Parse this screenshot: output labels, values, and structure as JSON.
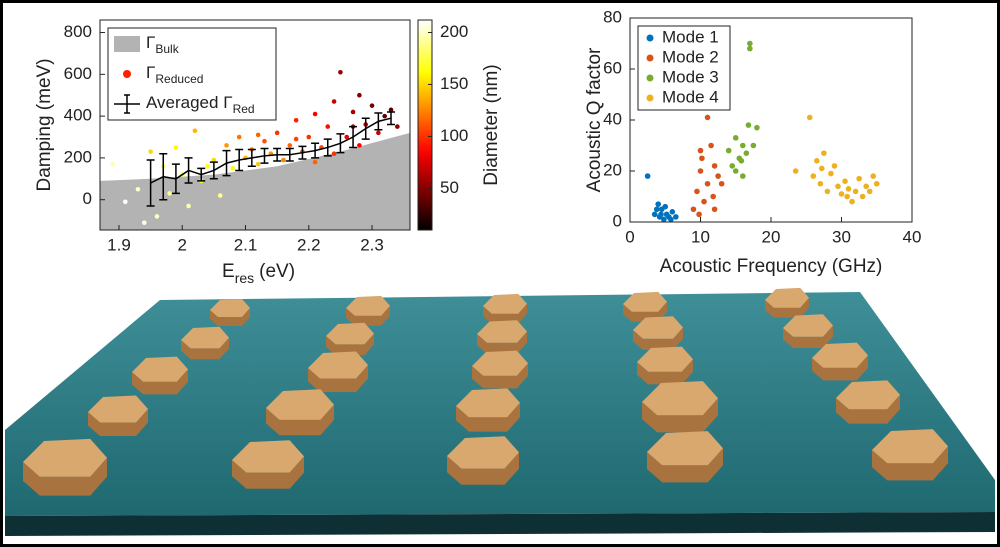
{
  "chart_data": [
    {
      "type": "scatter",
      "ylabel": "Damping (meV)",
      "xlabel": "E",
      "xlabel_sub": "res",
      "xlabel_unit": "(eV)",
      "xlim": [
        1.87,
        2.36
      ],
      "ylim": [
        -145,
        860
      ],
      "xticks": [
        1.9,
        2,
        2.1,
        2.2,
        2.3
      ],
      "yticks": [
        0,
        200,
        400,
        600,
        800
      ],
      "legend": "upper left",
      "series": [
        {
          "name": "Γ",
          "name_sub": "Bulk",
          "type": "area",
          "color": "#b3b3b3",
          "x": [
            1.87,
            1.95,
            2.05,
            2.15,
            2.25,
            2.36
          ],
          "values": [
            90,
            100,
            120,
            160,
            230,
            320
          ]
        },
        {
          "name": "Γ",
          "name_sub": "Reduced",
          "type": "scatter",
          "color": "#ff2000",
          "x": [
            1.89,
            1.93,
            1.94,
            1.95,
            1.96,
            1.97,
            1.98,
            1.99,
            2.0,
            2.01,
            2.02,
            2.03,
            2.05,
            2.06,
            2.07,
            2.08,
            2.09,
            2.1,
            2.11,
            2.12,
            2.13,
            2.14,
            2.15,
            2.16,
            2.17,
            2.18,
            2.19,
            2.2,
            2.21,
            2.22,
            2.23,
            2.24,
            2.24,
            2.25,
            2.26,
            2.27,
            2.28,
            2.28,
            2.29,
            2.3,
            2.31,
            2.32,
            2.33,
            2.34,
            2.21,
            2.18,
            2.12,
            2.04,
            1.91,
            2.27
          ],
          "values": [
            170,
            50,
            -110,
            230,
            -80,
            160,
            30,
            250,
            120,
            -30,
            330,
            90,
            190,
            20,
            260,
            150,
            300,
            200,
            240,
            170,
            280,
            220,
            320,
            190,
            260,
            380,
            230,
            300,
            410,
            250,
            350,
            470,
            220,
            610,
            300,
            420,
            500,
            260,
            360,
            450,
            320,
            400,
            430,
            350,
            180,
            290,
            310,
            160,
            -10,
            350
          ],
          "diameters": [
            195,
            200,
            205,
            150,
            200,
            180,
            190,
            160,
            175,
            195,
            140,
            170,
            150,
            190,
            130,
            160,
            120,
            140,
            125,
            145,
            110,
            130,
            100,
            125,
            115,
            95,
            110,
            100,
            85,
            105,
            90,
            70,
            100,
            55,
            80,
            60,
            50,
            85,
            65,
            45,
            70,
            40,
            35,
            50,
            115,
            105,
            115,
            165,
            210,
            70
          ]
        },
        {
          "name": "Averaged Γ",
          "name_sub": "Red",
          "type": "errorbar",
          "color": "#000000",
          "x": [
            1.95,
            1.97,
            1.99,
            2.01,
            2.03,
            2.05,
            2.07,
            2.09,
            2.11,
            2.13,
            2.15,
            2.17,
            2.19,
            2.21,
            2.23,
            2.25,
            2.27,
            2.29,
            2.31,
            2.33
          ],
          "values": [
            80,
            110,
            100,
            140,
            120,
            140,
            175,
            190,
            200,
            210,
            215,
            215,
            225,
            235,
            250,
            270,
            300,
            340,
            375,
            390
          ],
          "errors": [
            110,
            110,
            70,
            60,
            30,
            40,
            60,
            50,
            40,
            35,
            30,
            30,
            30,
            35,
            40,
            45,
            50,
            50,
            40,
            30
          ]
        }
      ],
      "colorbar": {
        "label": "Diameter (nm)",
        "lim": [
          10,
          212
        ],
        "ticks": [
          50,
          100,
          150,
          200
        ],
        "colormap": "hot"
      }
    },
    {
      "type": "scatter",
      "ylabel": "Acoustic Q factor",
      "xlabel": "Acoustic Frequency (GHz)",
      "xlim": [
        0,
        40
      ],
      "ylim": [
        0,
        80
      ],
      "xticks": [
        0,
        10,
        20,
        30,
        40
      ],
      "yticks": [
        0,
        20,
        40,
        60,
        80
      ],
      "legend": "upper left",
      "series": [
        {
          "name": "Mode 1",
          "color": "#0072bd",
          "x": [
            2.5,
            3.5,
            4,
            4.2,
            4.5,
            4.8,
            5,
            5.2,
            5.5,
            6,
            6.5,
            3.8,
            4.4,
            5.8
          ],
          "values": [
            18,
            3,
            7,
            2,
            5,
            1,
            6,
            3,
            2,
            4,
            2,
            5,
            3,
            1
          ]
        },
        {
          "name": "Mode 2",
          "color": "#d95319",
          "x": [
            9,
            9.5,
            10,
            10,
            10.5,
            11,
            11,
            11.5,
            12,
            12,
            12.5,
            13,
            10.2,
            11.8,
            9.8
          ],
          "values": [
            5,
            12,
            20,
            28,
            8,
            41,
            15,
            30,
            5,
            22,
            18,
            15,
            25,
            10,
            3
          ]
        },
        {
          "name": "Mode 3",
          "color": "#77ac30",
          "x": [
            14,
            14.5,
            15,
            15,
            15.5,
            16,
            16,
            16.5,
            17,
            17,
            17.5,
            18,
            15.8,
            16.8
          ],
          "values": [
            28,
            22,
            33,
            20,
            25,
            30,
            18,
            27,
            70,
            68,
            30,
            37,
            24,
            38
          ]
        },
        {
          "name": "Mode 4",
          "color": "#edb120",
          "x": [
            23.5,
            25.5,
            26,
            26.5,
            27,
            27.5,
            28,
            28.5,
            29,
            29.5,
            30,
            30.5,
            31,
            31.5,
            32,
            32.5,
            33,
            33.5,
            34,
            34.5,
            35,
            27.2,
            30.8
          ],
          "values": [
            20,
            41,
            18,
            24,
            15,
            27,
            12,
            19,
            22,
            14,
            11,
            16,
            13,
            8,
            12,
            17,
            10,
            14,
            12,
            18,
            15,
            21,
            10
          ]
        }
      ]
    }
  ]
}
